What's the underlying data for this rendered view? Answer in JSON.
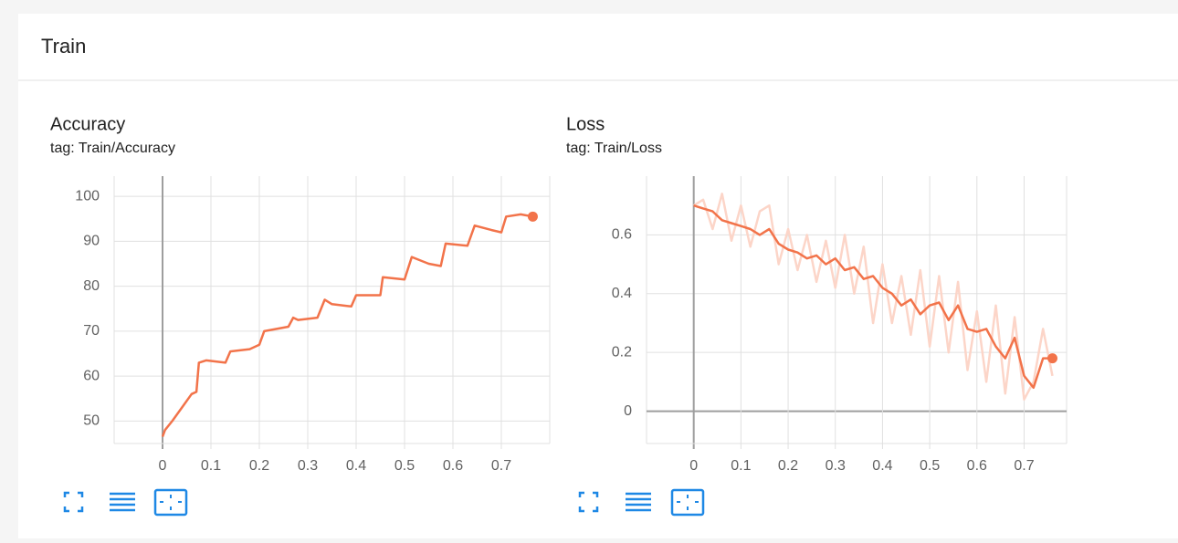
{
  "header": {
    "title": "Train"
  },
  "chart_data": [
    {
      "type": "line",
      "title": "Accuracy",
      "subtitle": "tag: Train/Accuracy",
      "x": [
        0,
        0.005,
        0.02,
        0.04,
        0.06,
        0.07,
        0.075,
        0.09,
        0.13,
        0.14,
        0.18,
        0.2,
        0.21,
        0.26,
        0.27,
        0.28,
        0.32,
        0.335,
        0.35,
        0.39,
        0.4,
        0.45,
        0.455,
        0.5,
        0.515,
        0.55,
        0.575,
        0.585,
        0.63,
        0.645,
        0.68,
        0.7,
        0.71,
        0.74,
        0.765
      ],
      "series": [
        {
          "color": "#f2734a",
          "end_marker": true,
          "values": [
            46.5,
            48,
            50,
            53,
            56,
            56.5,
            63,
            63.5,
            63,
            65.5,
            66,
            67,
            70,
            71,
            73,
            72.5,
            73,
            77,
            76,
            75.5,
            78,
            78,
            82,
            81.5,
            86.5,
            85,
            84.5,
            89.5,
            89,
            93.5,
            92.5,
            92,
            95.5,
            96,
            95.5
          ]
        }
      ],
      "xlim": [
        -0.1,
        0.8
      ],
      "ylim": [
        45,
        104.5
      ],
      "xticks": [
        0,
        0.1,
        0.2,
        0.3,
        0.4,
        0.5,
        0.6,
        0.7
      ],
      "yticks": [
        50,
        60,
        70,
        80,
        90,
        100
      ],
      "grid": true
    },
    {
      "type": "line",
      "title": "Loss",
      "subtitle": "tag: Train/Loss",
      "x": [
        0,
        0.02,
        0.04,
        0.06,
        0.08,
        0.1,
        0.12,
        0.14,
        0.16,
        0.18,
        0.2,
        0.22,
        0.24,
        0.26,
        0.28,
        0.3,
        0.32,
        0.34,
        0.36,
        0.38,
        0.4,
        0.42,
        0.44,
        0.46,
        0.48,
        0.5,
        0.52,
        0.54,
        0.56,
        0.58,
        0.6,
        0.62,
        0.64,
        0.66,
        0.68,
        0.7,
        0.72,
        0.74,
        0.76
      ],
      "series": [
        {
          "color": "#fcd5c8",
          "end_marker": false,
          "values": [
            0.7,
            0.72,
            0.62,
            0.74,
            0.58,
            0.7,
            0.56,
            0.68,
            0.7,
            0.5,
            0.62,
            0.48,
            0.6,
            0.44,
            0.58,
            0.42,
            0.6,
            0.4,
            0.56,
            0.3,
            0.5,
            0.3,
            0.46,
            0.26,
            0.48,
            0.22,
            0.46,
            0.2,
            0.44,
            0.14,
            0.34,
            0.1,
            0.36,
            0.06,
            0.32,
            0.04,
            0.1,
            0.28,
            0.12
          ]
        },
        {
          "color": "#f2734a",
          "end_marker": true,
          "values": [
            0.7,
            0.69,
            0.68,
            0.65,
            0.64,
            0.63,
            0.62,
            0.6,
            0.62,
            0.57,
            0.55,
            0.54,
            0.52,
            0.53,
            0.5,
            0.52,
            0.48,
            0.49,
            0.45,
            0.46,
            0.42,
            0.4,
            0.36,
            0.38,
            0.33,
            0.36,
            0.37,
            0.31,
            0.36,
            0.28,
            0.27,
            0.28,
            0.22,
            0.18,
            0.25,
            0.12,
            0.08,
            0.18,
            0.18
          ]
        }
      ],
      "xlim": [
        -0.1,
        0.79
      ],
      "ylim": [
        -0.11,
        0.8
      ],
      "xticks": [
        0,
        0.1,
        0.2,
        0.3,
        0.4,
        0.5,
        0.6,
        0.7
      ],
      "yticks": [
        0,
        0.2,
        0.4,
        0.6
      ],
      "grid": true
    }
  ]
}
